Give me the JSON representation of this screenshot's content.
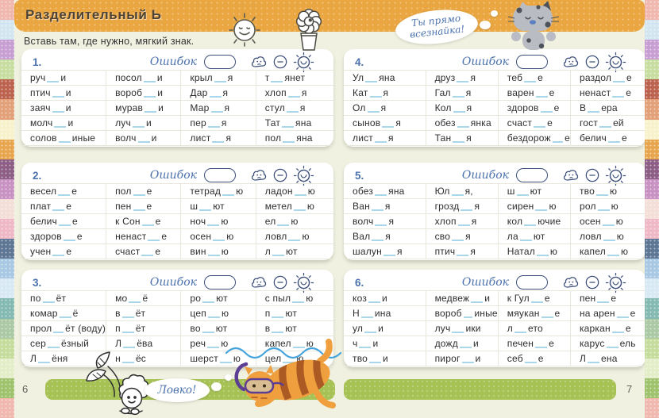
{
  "header": {
    "title": "Разделительный Ь",
    "speech_bubble": "Ты прямо всезнайка!"
  },
  "instruction": "Вставь там, где нужно, мягкий знак.",
  "labels": {
    "errors": "Ошибок",
    "praise_bubble": "Ловко!"
  },
  "footer": {
    "page_number_left": "6",
    "page_number_right": "7"
  },
  "rating_icons": [
    "sad-cloud-face",
    "neutral-face",
    "happy-sun-face"
  ],
  "colors": {
    "header_orange": "#eaa640",
    "accent_blue": "#4b72ad",
    "icon_navy": "#3d4f79",
    "bar_green": "#a6c254",
    "gap_blue": "#a9d6e8",
    "page_cream": "#f0f1e1"
  },
  "decor": {
    "stripe_palette": [
      "#f0b8ae",
      "#d3e5f1",
      "#c89fd2",
      "#c8dda0",
      "#bd6450",
      "#e2a178",
      "#f8f2cc",
      "#e7a64e",
      "#8d5e86",
      "#c892c2",
      "#f3ded8",
      "#efb8c6",
      "#5e7795",
      "#a9c8e3",
      "#d8e9f4",
      "#85bab3",
      "#abc9a4",
      "#c5dc9d",
      "#e3eec9",
      "#9fc36d"
    ]
  },
  "exercises": [
    {
      "number": "1.",
      "rows": [
        [
          "руч_и",
          "посол_и",
          "крыл_я",
          "т_янет"
        ],
        [
          "птич_и",
          "вороб_и",
          "Дар_я",
          "хлоп_я"
        ],
        [
          "заяч_и",
          "мурав_и",
          "Мар_я",
          "стул_я"
        ],
        [
          "молч_и",
          "луч_и",
          "пер_я",
          "Тат_яна"
        ],
        [
          "солов_иные",
          "волч_и",
          "лист_я",
          "пол_яна"
        ]
      ]
    },
    {
      "number": "2.",
      "rows": [
        [
          "весел_е",
          "пол_е",
          "тетрад_ю",
          "ладон_ю"
        ],
        [
          "плат_е",
          "пен_е",
          "ш_ют",
          "метел_ю"
        ],
        [
          "белич_е",
          "к Сон_е",
          "ноч_ю",
          "ел_ю"
        ],
        [
          "здоров_е",
          "ненаст_е",
          "осен_ю",
          "ловл_ю"
        ],
        [
          "учен_е",
          "счаст_е",
          "вин_ю",
          "л_ют"
        ]
      ]
    },
    {
      "number": "3.",
      "rows": [
        [
          "по_ёт",
          "мо_ё",
          "ро_ют",
          "с пыл_ю"
        ],
        [
          "комар_ё",
          "в_ёт",
          "цеп_ю",
          "п_ют"
        ],
        [
          "прол_ёт (воду)",
          "п_ёт",
          "во_ют",
          "в_ют"
        ],
        [
          "сер_ёзный",
          "Л_ёва",
          "реч_ю",
          "капел_ю"
        ],
        [
          "Л_ёня",
          "н_ёс",
          "шерст_ю",
          "цел_ю"
        ]
      ]
    },
    {
      "number": "4.",
      "rows": [
        [
          "Ул_яна",
          "друз_я",
          "теб_е",
          "раздол_е"
        ],
        [
          "Кат_я",
          "Гал_я",
          "варен_е",
          "ненаст_е"
        ],
        [
          "Ол_я",
          "Кол_я",
          "здоров_е",
          "В_ера"
        ],
        [
          "сынов_я",
          "обез_янка",
          "счаст_е",
          "гост_ей"
        ],
        [
          "лист_я",
          "Тан_я",
          "бездорож_е",
          "белич_е"
        ]
      ]
    },
    {
      "number": "5.",
      "rows": [
        [
          "обез_яна",
          "Юл_я,",
          "ш_ют",
          "тво_ю"
        ],
        [
          "Ван_я",
          "грозд_я",
          "сирен_ю",
          "рол_ю"
        ],
        [
          "волч_я",
          "хлоп_я",
          "кол_ючие",
          "осен_ю"
        ],
        [
          "Вал_я",
          "сво_я",
          "ла_ют",
          "ловл_ю"
        ],
        [
          "шалун_я",
          "птич_я",
          "Натал_ю",
          "капел_ю"
        ]
      ]
    },
    {
      "number": "6.",
      "rows": [
        [
          "коз_и",
          "медвеж_и",
          "к Гул_е",
          "пен_е"
        ],
        [
          "Н_ина",
          "вороб_иные",
          "мяукан_е",
          "на арен_е"
        ],
        [
          "ул_и",
          "луч_ики",
          "л_ето",
          "каркан_е"
        ],
        [
          "ч_и",
          "дожд_и",
          "печен_е",
          "карус_ель"
        ],
        [
          "тво_и",
          "пирог_и",
          "себ_е",
          "Л_ена"
        ]
      ]
    }
  ]
}
